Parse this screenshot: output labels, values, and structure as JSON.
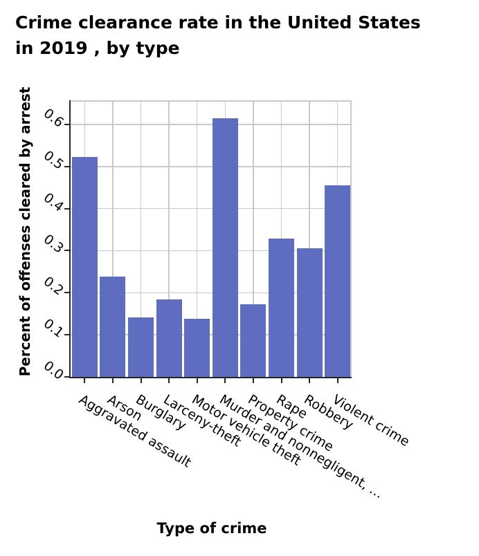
{
  "title": {
    "line1": "Crime clearance rate in the United States",
    "line2": "in 2019 , by type"
  },
  "chart_data": {
    "type": "bar",
    "title": "Crime clearance rate in the United States in 2019 , by type",
    "categories": [
      "Aggravated assault",
      "Arson",
      "Burglary",
      "Larceny-theft",
      "Motor vehicle theft",
      "Murder and nonnegligent, …",
      "Property crime",
      "Rape",
      "Robbery",
      "Violent crime"
    ],
    "values": [
      0.523,
      0.238,
      0.141,
      0.184,
      0.138,
      0.614,
      0.172,
      0.329,
      0.305,
      0.455
    ],
    "xlabel": "Type of crime",
    "ylabel": "Percent of offenses cleared by arrest",
    "yticks": [
      0.0,
      0.1,
      0.2,
      0.3,
      0.4,
      0.5,
      0.6
    ],
    "ytick_labels": [
      "0.0",
      "0.1",
      "0.2",
      "0.3",
      "0.4",
      "0.5",
      "0.6"
    ],
    "ylim": [
      0,
      0.6575
    ],
    "grid": true,
    "legend": null,
    "bar_color": "#5f6dc1"
  },
  "colors": {
    "bar": "#5f6dc1",
    "grid": "#c9c9c9",
    "spine": "#262626",
    "text": "#000000",
    "background": "#ffffff"
  }
}
